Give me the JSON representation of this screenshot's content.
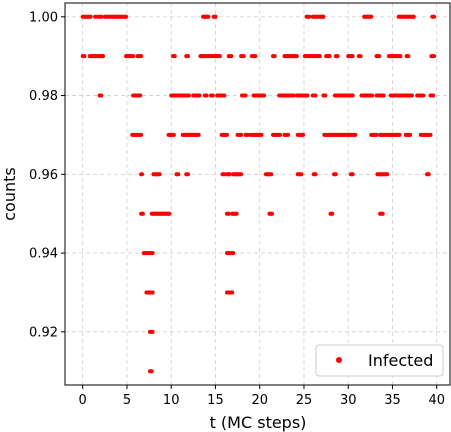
{
  "chart_data": {
    "type": "scatter",
    "title": "",
    "xlabel": "t (MC steps)",
    "ylabel": "counts",
    "xlim": [
      -2,
      41.5
    ],
    "ylim": [
      0.9065,
      1.0035
    ],
    "xticks": [
      0,
      5,
      10,
      15,
      20,
      25,
      30,
      35,
      40
    ],
    "yticks": [
      0.92,
      0.94,
      0.96,
      0.98,
      1.0
    ],
    "ytick_labels": [
      "0.92",
      "0.94",
      "0.96",
      "0.98",
      "1.00"
    ],
    "grid": true,
    "legend_position": "lower-right",
    "marker_color": "#ff0000",
    "series": [
      {
        "name": "Infected",
        "levels": [
          {
            "y": 1.0,
            "ranges": [
              [
                0.0,
                0.9
              ],
              [
                1.4,
                1.5
              ],
              [
                1.8,
                2.1
              ],
              [
                2.5,
                4.9
              ],
              [
                13.6,
                14.2
              ],
              [
                14.8,
                15.0
              ],
              [
                25.3,
                25.6
              ],
              [
                26.0,
                27.2
              ],
              [
                31.8,
                32.6
              ],
              [
                35.7,
                37.4
              ],
              [
                39.5,
                39.7
              ]
            ]
          },
          {
            "y": 0.99,
            "ranges": [
              [
                0.0,
                0.2
              ],
              [
                0.8,
                2.3
              ],
              [
                4.9,
                5.7
              ],
              [
                6.2,
                6.6
              ],
              [
                10.2,
                10.4
              ],
              [
                11.7,
                11.9
              ],
              [
                13.3,
                15.5
              ],
              [
                16.5,
                16.8
              ],
              [
                17.9,
                18.2
              ],
              [
                19.1,
                19.5
              ],
              [
                21.5,
                21.7
              ],
              [
                22.8,
                24.2
              ],
              [
                25.1,
                26.8
              ],
              [
                27.5,
                27.9
              ],
              [
                28.6,
                28.8
              ],
              [
                30.0,
                30.5
              ],
              [
                31.2,
                31.4
              ],
              [
                33.2,
                33.5
              ],
              [
                34.6,
                35.9
              ],
              [
                36.6,
                36.8
              ],
              [
                39.4,
                39.7
              ]
            ]
          },
          {
            "y": 0.98,
            "ranges": [
              [
                1.9,
                2.1
              ],
              [
                5.7,
                6.5
              ],
              [
                10.0,
                12.0
              ],
              [
                12.5,
                13.2
              ],
              [
                13.8,
                14.0
              ],
              [
                14.5,
                14.7
              ],
              [
                15.2,
                16.0
              ],
              [
                18.0,
                18.4
              ],
              [
                19.3,
                20.5
              ],
              [
                22.2,
                23.8
              ],
              [
                24.2,
                25.4
              ],
              [
                26.0,
                26.3
              ],
              [
                27.2,
                27.4
              ],
              [
                28.5,
                30.5
              ],
              [
                31.5,
                32.7
              ],
              [
                33.2,
                34.0
              ],
              [
                34.8,
                37.2
              ],
              [
                37.8,
                38.5
              ],
              [
                39.3,
                39.6
              ]
            ]
          },
          {
            "y": 0.97,
            "ranges": [
              [
                5.6,
                6.2
              ],
              [
                6.4,
                6.6
              ],
              [
                9.7,
                10.3
              ],
              [
                11.3,
                13.1
              ],
              [
                15.7,
                16.3
              ],
              [
                17.5,
                17.9
              ],
              [
                18.4,
                18.7
              ],
              [
                19.0,
                20.2
              ],
              [
                21.5,
                22.3
              ],
              [
                22.8,
                23.2
              ],
              [
                24.3,
                24.9
              ],
              [
                27.3,
                30.4
              ],
              [
                30.6,
                30.8
              ],
              [
                32.6,
                33.2
              ],
              [
                33.6,
                34.1
              ],
              [
                34.3,
                35.8
              ],
              [
                36.5,
                37.0
              ],
              [
                38.2,
                39.3
              ]
            ]
          },
          {
            "y": 0.96,
            "ranges": [
              [
                6.6,
                6.7
              ],
              [
                8.0,
                8.7
              ],
              [
                10.6,
                10.8
              ],
              [
                11.7,
                11.9
              ],
              [
                15.8,
                16.0
              ],
              [
                16.3,
                16.6
              ],
              [
                17.0,
                17.9
              ],
              [
                20.7,
                21.3
              ],
              [
                24.3,
                24.7
              ],
              [
                26.1,
                26.3
              ],
              [
                28.4,
                28.6
              ],
              [
                30.3,
                30.5
              ],
              [
                33.3,
                34.4
              ],
              [
                38.9,
                39.1
              ]
            ]
          },
          {
            "y": 0.95,
            "ranges": [
              [
                6.6,
                6.8
              ],
              [
                7.8,
                9.8
              ],
              [
                16.3,
                16.5
              ],
              [
                16.9,
                17.4
              ],
              [
                21.1,
                21.4
              ],
              [
                28.0,
                28.2
              ],
              [
                33.6,
                33.9
              ]
            ]
          },
          {
            "y": 0.94,
            "ranges": [
              [
                6.9,
                7.9
              ],
              [
                16.3,
                17.0
              ]
            ]
          },
          {
            "y": 0.93,
            "ranges": [
              [
                7.2,
                7.9
              ],
              [
                16.3,
                16.9
              ]
            ]
          },
          {
            "y": 0.92,
            "ranges": [
              [
                7.6,
                7.9
              ]
            ]
          },
          {
            "y": 0.91,
            "ranges": [
              [
                7.6,
                7.8
              ]
            ]
          }
        ]
      }
    ]
  }
}
